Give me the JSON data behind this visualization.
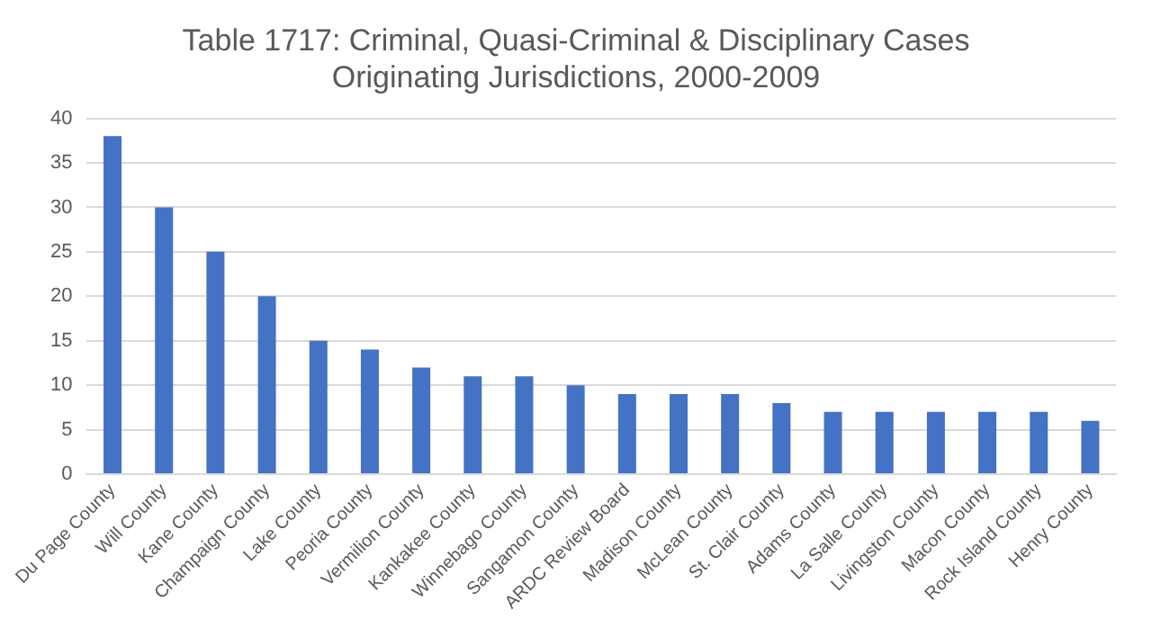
{
  "chart_data": {
    "type": "bar",
    "title": [
      "Table 1717: Criminal, Quasi-Criminal & Disciplinary Cases",
      "Originating Jurisdictions, 2000-2009"
    ],
    "categories": [
      "Du Page County",
      "Will County",
      "Kane County",
      "Champaign County",
      "Lake County",
      "Peoria County",
      "Vermilion County",
      "Kankakee County",
      "Winnebago County",
      "Sangamon County",
      "ARDC Review Board",
      "Madison County",
      "McLean County",
      "St. Clair County",
      "Adams County",
      "La Salle County",
      "Livingston County",
      "Macon County",
      "Rock Island County",
      "Henry County"
    ],
    "values": [
      38,
      30,
      25,
      20,
      15,
      14,
      12,
      11,
      11,
      10,
      9,
      9,
      9,
      8,
      7,
      7,
      7,
      7,
      7,
      6
    ],
    "color": "#4472c4",
    "ylim": [
      0,
      40
    ],
    "yticks": [
      0,
      5,
      10,
      15,
      20,
      25,
      30,
      35,
      40
    ],
    "grid": "y",
    "legend": false
  }
}
